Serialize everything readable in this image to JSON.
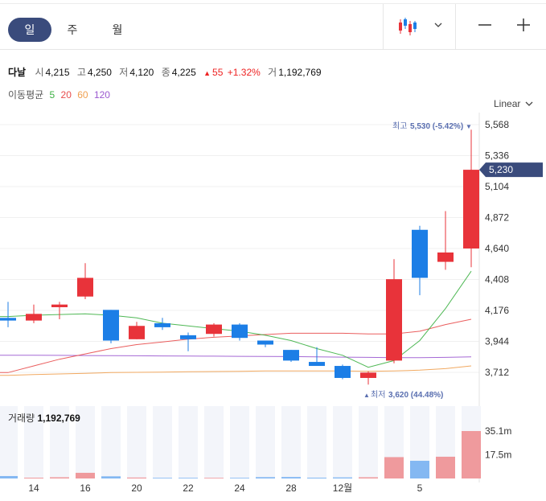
{
  "tabs": [
    {
      "label": "일",
      "active": true
    },
    {
      "label": "주",
      "active": false
    },
    {
      "label": "월",
      "active": false
    }
  ],
  "toolbar": {
    "chart_type_icon": "candlestick-icon",
    "dropdown_icon": "chevron-down-icon",
    "zoom_out": "−",
    "zoom_in": "+"
  },
  "quote": {
    "name": "다날",
    "open_label": "시",
    "open": "4,215",
    "high_label": "고",
    "high": "4,250",
    "low_label": "저",
    "low": "4,120",
    "close_label": "종",
    "close": "4,225",
    "change_arrow": "▲",
    "change": "55",
    "change_pct": "+1.32%",
    "volume_label": "거",
    "volume": "1,192,769"
  },
  "moving_average": {
    "label": "이동평균",
    "periods": [
      {
        "period": "5",
        "color": "#3cb043"
      },
      {
        "period": "20",
        "color": "#e84c4c"
      },
      {
        "period": "60",
        "color": "#f0a050"
      },
      {
        "period": "120",
        "color": "#9b59d0"
      }
    ]
  },
  "scale": {
    "label": "Linear"
  },
  "colors": {
    "up": "#e8333a",
    "down": "#1c7ee6",
    "accent": "#3a4b7c",
    "label_blue": "#5a6fb0"
  },
  "chart_data": {
    "type": "candlestick",
    "price_axis_ticks": [
      "5,568",
      "5,336",
      "5,104",
      "4,872",
      "4,640",
      "4,408",
      "4,176",
      "3,944",
      "3,712"
    ],
    "price_ylim": [
      3620,
      5620
    ],
    "current_price_label": "5,230",
    "current_price": 5230,
    "max_annotation": {
      "label": "최고",
      "value": "5,530",
      "pct": "(-5.42%)",
      "arrow": "▼"
    },
    "min_annotation": {
      "label": "최저",
      "value": "3,620",
      "pct": "(44.48%)",
      "arrow": "▲"
    },
    "x_tick_labels": [
      "14",
      "16",
      "20",
      "22",
      "24",
      "28",
      "12월",
      "5"
    ],
    "candles": [
      {
        "o": 4120,
        "h": 4240,
        "l": 4050,
        "c": 4100
      },
      {
        "o": 4100,
        "h": 4220,
        "l": 4080,
        "c": 4150
      },
      {
        "o": 4200,
        "h": 4240,
        "l": 4110,
        "c": 4220
      },
      {
        "o": 4280,
        "h": 4530,
        "l": 4260,
        "c": 4420
      },
      {
        "o": 4180,
        "h": 4180,
        "l": 3930,
        "c": 3950
      },
      {
        "o": 3960,
        "h": 4090,
        "l": 3960,
        "c": 4060
      },
      {
        "o": 4080,
        "h": 4120,
        "l": 4030,
        "c": 4050
      },
      {
        "o": 3990,
        "h": 4010,
        "l": 3870,
        "c": 3960
      },
      {
        "o": 4000,
        "h": 4080,
        "l": 3980,
        "c": 4070
      },
      {
        "o": 4070,
        "h": 4080,
        "l": 3950,
        "c": 3970
      },
      {
        "o": 3950,
        "h": 3950,
        "l": 3900,
        "c": 3920
      },
      {
        "o": 3880,
        "h": 3880,
        "l": 3790,
        "c": 3800
      },
      {
        "o": 3790,
        "h": 3900,
        "l": 3760,
        "c": 3760
      },
      {
        "o": 3760,
        "h": 3770,
        "l": 3660,
        "c": 3670
      },
      {
        "o": 3670,
        "h": 3720,
        "l": 3620,
        "c": 3710
      },
      {
        "o": 3800,
        "h": 4560,
        "l": 3780,
        "c": 4410
      },
      {
        "o": 4780,
        "h": 4810,
        "l": 4290,
        "c": 4420
      },
      {
        "o": 4540,
        "h": 4920,
        "l": 4480,
        "c": 4610
      },
      {
        "o": 4640,
        "h": 5530,
        "l": 4500,
        "c": 5230
      }
    ],
    "ma5": [
      4130,
      4140,
      4145,
      4150,
      4140,
      4120,
      4080,
      4060,
      4040,
      4020,
      3990,
      3950,
      3890,
      3840,
      3750,
      3800,
      3950,
      4190,
      4470
    ],
    "ma20": [
      3710,
      3760,
      3810,
      3850,
      3890,
      3920,
      3940,
      3960,
      3975,
      3985,
      3995,
      4005,
      4005,
      4005,
      4000,
      4000,
      4020,
      4070,
      4110
    ],
    "ma60": [
      3690,
      3695,
      3700,
      3705,
      3710,
      3712,
      3714,
      3716,
      3718,
      3720,
      3722,
      3722,
      3722,
      3722,
      3720,
      3722,
      3728,
      3740,
      3760
    ],
    "ma120": [
      3840,
      3840,
      3839,
      3838,
      3837,
      3836,
      3835,
      3834,
      3833,
      3832,
      3831,
      3830,
      3828,
      3826,
      3824,
      3822,
      3822,
      3824,
      3828
    ],
    "volume": {
      "label": "거래량",
      "value": "1,192,769",
      "axis_ticks": [
        "35.1m",
        "17.5m"
      ],
      "ylim": [
        0,
        40000000
      ],
      "bars": [
        1800000,
        600000,
        900000,
        4200000,
        1600000,
        700000,
        500000,
        500000,
        500000,
        500000,
        1000000,
        1100000,
        600000,
        800000,
        900000,
        15800000,
        13100000,
        16100000,
        35100000
      ]
    }
  }
}
